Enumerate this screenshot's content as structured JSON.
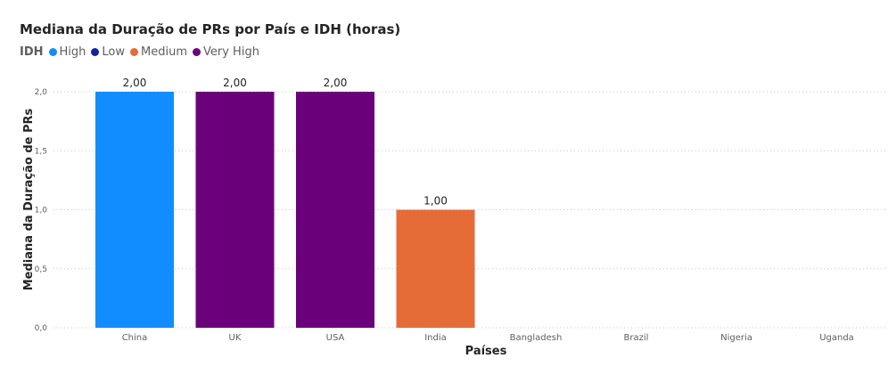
{
  "chart_data": {
    "type": "bar",
    "title": "Mediana da Duração de PRs por País e IDH (horas)",
    "xlabel": "Países",
    "ylabel": "Mediana da Duração de PRs",
    "ylim": [
      0,
      2
    ],
    "yticks": [
      "0,0",
      "0,5",
      "1,0",
      "1,5",
      "2,0"
    ],
    "grid": true,
    "legend": {
      "title": "IDH",
      "placement": "top-left",
      "items": [
        {
          "name": "High",
          "color": "#118dff"
        },
        {
          "name": "Low",
          "color": "#12239e"
        },
        {
          "name": "Medium",
          "color": "#e66c37"
        },
        {
          "name": "Very High",
          "color": "#6b007b"
        }
      ]
    },
    "categories": [
      "China",
      "UK",
      "USA",
      "India",
      "Bangladesh",
      "Brazil",
      "Nigeria",
      "Uganda"
    ],
    "values": [
      2.0,
      2.0,
      2.0,
      1.0,
      0,
      0,
      0,
      0
    ],
    "value_labels": [
      "2,00",
      "2,00",
      "2,00",
      "1,00",
      "",
      "",
      "",
      ""
    ],
    "groups": [
      "High",
      "Very High",
      "Very High",
      "Medium",
      "",
      "",
      "",
      ""
    ]
  }
}
